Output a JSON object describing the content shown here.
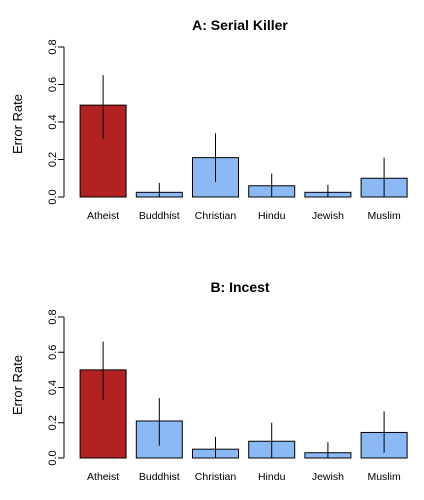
{
  "chart_data": [
    {
      "type": "bar",
      "title": "A: Serial Killer",
      "ylabel": "Error Rate",
      "xlabel": "",
      "ylim": [
        0,
        0.8
      ],
      "yticks": [
        0.0,
        0.2,
        0.4,
        0.6,
        0.8
      ],
      "ytick_labels": [
        "0.0",
        "0.2",
        "0.4",
        "0.6",
        "0.8"
      ],
      "categories": [
        "Atheist",
        "Buddhist",
        "Christian",
        "Hindu",
        "Jewish",
        "Muslim"
      ],
      "values": [
        0.49,
        0.025,
        0.21,
        0.06,
        0.025,
        0.1
      ],
      "err_low": [
        0.31,
        0.0,
        0.08,
        0.0,
        0.0,
        0.0
      ],
      "err_high": [
        0.65,
        0.075,
        0.34,
        0.125,
        0.065,
        0.21
      ],
      "colors": [
        "#b22222",
        "#8bb9f5",
        "#8bb9f5",
        "#8bb9f5",
        "#8bb9f5",
        "#8bb9f5"
      ]
    },
    {
      "type": "bar",
      "title": "B: Incest",
      "ylabel": "Error Rate",
      "xlabel": "",
      "ylim": [
        0,
        0.8
      ],
      "yticks": [
        0.0,
        0.2,
        0.4,
        0.6,
        0.8
      ],
      "ytick_labels": [
        "0.0",
        "0.2",
        "0.4",
        "0.6",
        "0.8"
      ],
      "categories": [
        "Atheist",
        "Buddhist",
        "Christian",
        "Hindu",
        "Jewish",
        "Muslim"
      ],
      "values": [
        0.5,
        0.21,
        0.05,
        0.095,
        0.03,
        0.145
      ],
      "err_low": [
        0.33,
        0.07,
        0.0,
        0.0,
        0.0,
        0.03
      ],
      "err_high": [
        0.66,
        0.34,
        0.12,
        0.2,
        0.09,
        0.265
      ],
      "colors": [
        "#b22222",
        "#8bb9f5",
        "#8bb9f5",
        "#8bb9f5",
        "#8bb9f5",
        "#8bb9f5"
      ]
    }
  ]
}
